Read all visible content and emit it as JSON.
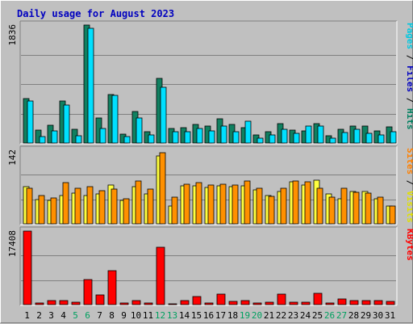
{
  "chart_data": {
    "type": "bar",
    "title": "Daily usage for August 2023",
    "categories": [
      "1",
      "2",
      "3",
      "4",
      "5",
      "6",
      "7",
      "8",
      "9",
      "10",
      "11",
      "12",
      "13",
      "14",
      "15",
      "16",
      "17",
      "18",
      "19",
      "20",
      "21",
      "22",
      "23",
      "24",
      "25",
      "26",
      "27",
      "28",
      "29",
      "30",
      "31"
    ],
    "weekend_days": [
      "5",
      "6",
      "12",
      "13",
      "19",
      "20",
      "26",
      "27"
    ],
    "panels": [
      {
        "name": "hits-files-pages",
        "ymax": 1836,
        "ymax_label": "1836",
        "right_label_parts": [
          {
            "text": "Pages",
            "color": "#00c8e0"
          },
          {
            "text": " / ",
            "color": "#000000"
          },
          {
            "text": "Files",
            "color": "#0000c0"
          },
          {
            "text": " / ",
            "color": "#000000"
          },
          {
            "text": "Hits",
            "color": "#008060"
          }
        ],
        "series": [
          {
            "name": "Hits",
            "color": "#108060",
            "values": [
              690,
              200,
              280,
              650,
              210,
              1836,
              390,
              750,
              140,
              490,
              180,
              1000,
              230,
              240,
              290,
              270,
              380,
              290,
              240,
              130,
              180,
              300,
              200,
              190,
              300,
              110,
              210,
              270,
              270,
              190,
              250
            ]
          },
          {
            "name": "Files",
            "color": "#0000c0",
            "values": [
              310,
              60,
              140,
              230,
              80,
              1200,
              170,
              310,
              50,
              140,
              60,
              560,
              80,
              90,
              110,
              100,
              190,
              120,
              90,
              40,
              60,
              130,
              80,
              70,
              160,
              30,
              90,
              110,
              100,
              70,
              100
            ]
          },
          {
            "name": "Pages",
            "color": "#00e0ff",
            "values": [
              650,
              100,
              190,
              590,
              110,
              1780,
              230,
              740,
              100,
              390,
              120,
              870,
              180,
              180,
              230,
              190,
              270,
              170,
              340,
              70,
              120,
              210,
              150,
              270,
              260,
              70,
              160,
              210,
              150,
              130,
              180
            ]
          }
        ]
      },
      {
        "name": "visits-sites",
        "ymax": 142,
        "ymax_label": "142",
        "right_label_parts": [
          {
            "text": "Sites",
            "color": "#ff8000"
          },
          {
            "text": " / ",
            "color": "#000000"
          },
          {
            "text": "Visits",
            "color": "#e0e000"
          }
        ],
        "series": [
          {
            "name": "Visits",
            "color": "#ffff40",
            "values": [
              71,
              47,
              45,
              54,
              60,
              55,
              57,
              75,
              45,
              71,
              57,
              131,
              35,
              73,
              73,
              70,
              73,
              71,
              73,
              65,
              54,
              63,
              81,
              75,
              85,
              57,
              49,
              62,
              62,
              49,
              35
            ]
          },
          {
            "name": "Sites",
            "color": "#ff9000",
            "values": [
              68,
              54,
              50,
              79,
              68,
              72,
              64,
              67,
              48,
              82,
              67,
              138,
              51,
              76,
              79,
              75,
              77,
              75,
              83,
              69,
              53,
              68,
              83,
              81,
              69,
              51,
              68,
              61,
              60,
              51,
              35
            ]
          }
        ]
      },
      {
        "name": "kbytes",
        "ymax": 17408,
        "ymax_label": "17408",
        "right_label_parts": [
          {
            "text": "KBytes",
            "color": "#ff0000"
          }
        ],
        "series": [
          {
            "name": "KBytes",
            "color": "#ff0000",
            "values": [
              17408,
              300,
              1000,
              1000,
              600,
              6000,
              2200,
              8000,
              400,
              1000,
              400,
              13500,
              200,
              1000,
              2000,
              300,
              2500,
              800,
              900,
              400,
              600,
              2400,
              500,
              500,
              2700,
              400,
              1300,
              900,
              1000,
              900,
              800
            ]
          }
        ]
      }
    ]
  }
}
